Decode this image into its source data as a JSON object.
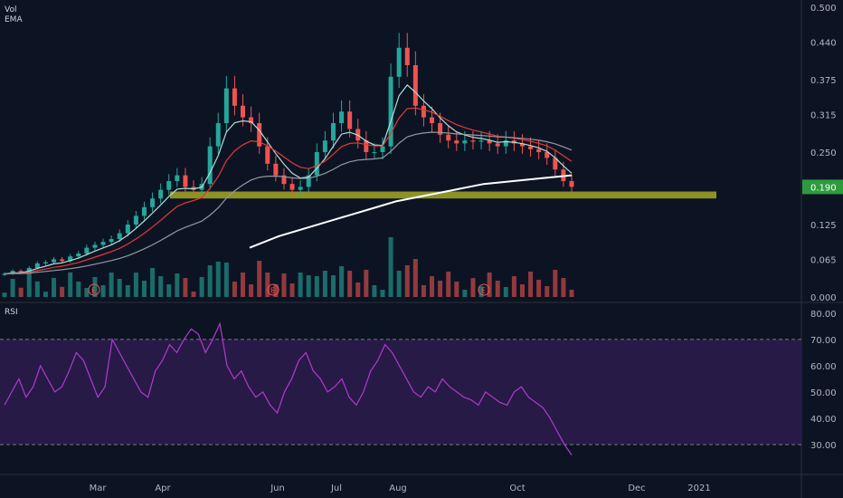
{
  "labels": {
    "vol": "Vol",
    "ema": "EMA",
    "rsi": "RSI"
  },
  "colors": {
    "background": "#0c1424",
    "bull": "#26a69a",
    "bear": "#ef5350",
    "support_zone": "#a6a826",
    "ema_white": "#ffffff",
    "ema_gray": "#9598a1",
    "ema_red": "#e53935",
    "ema_green": "#b2dfdb",
    "rsi_line": "#b03ad2",
    "rsi_band": "#2a1b4a",
    "last_price_bg": "#2e9b3e"
  },
  "chart_data": [
    {
      "type": "candlestick",
      "title": "",
      "price_axis_ticks": [
        "0.500",
        "0.440",
        "0.375",
        "0.315",
        "0.250",
        "0.190",
        "0.125",
        "0.065",
        "0.000"
      ],
      "time_axis_labels": [
        "Mar",
        "Apr",
        "Jun",
        "Jul",
        "Aug",
        "Oct",
        "Dec",
        "2021"
      ],
      "last_price": "0.190",
      "support_zone": [
        0.17,
        0.182
      ],
      "earnings_markers": [
        "E",
        "E",
        "E"
      ],
      "close_series": [
        0.04,
        0.045,
        0.042,
        0.05,
        0.058,
        0.06,
        0.065,
        0.062,
        0.07,
        0.075,
        0.085,
        0.09,
        0.095,
        0.1,
        0.11,
        0.125,
        0.14,
        0.155,
        0.17,
        0.185,
        0.2,
        0.21,
        0.19,
        0.185,
        0.195,
        0.26,
        0.3,
        0.36,
        0.33,
        0.31,
        0.3,
        0.26,
        0.23,
        0.21,
        0.195,
        0.185,
        0.19,
        0.21,
        0.25,
        0.27,
        0.3,
        0.32,
        0.29,
        0.27,
        0.25,
        0.25,
        0.26,
        0.38,
        0.43,
        0.4,
        0.33,
        0.31,
        0.3,
        0.28,
        0.27,
        0.265,
        0.27,
        0.268,
        0.27,
        0.265,
        0.26,
        0.27,
        0.265,
        0.26,
        0.255,
        0.25,
        0.24,
        0.22,
        0.2,
        0.19
      ],
      "ema_white": [
        0.085,
        0.105,
        0.12,
        0.135,
        0.15,
        0.165,
        0.175,
        0.185,
        0.195,
        0.2,
        0.205,
        0.21
      ],
      "rsi_axis_ticks": [
        "80.00",
        "70.00",
        "60.00",
        "50.00",
        "40.00",
        "30.00"
      ],
      "rsi_band": [
        30,
        70
      ],
      "rsi_values": [
        45,
        50,
        55,
        48,
        52,
        60,
        55,
        50,
        52,
        58,
        65,
        62,
        55,
        48,
        52,
        70,
        65,
        60,
        55,
        50,
        48,
        58,
        62,
        68,
        65,
        70,
        74,
        72,
        65,
        70,
        76,
        60,
        55,
        58,
        52,
        48,
        50,
        45,
        42,
        50,
        55,
        62,
        65,
        58,
        55,
        50,
        52,
        55,
        48,
        45,
        50,
        58,
        62,
        68,
        65,
        60,
        55,
        50,
        48,
        52,
        50,
        55,
        52,
        50,
        48,
        47,
        45,
        50,
        48,
        46,
        45,
        50,
        52,
        48,
        46,
        44,
        40,
        35,
        30,
        26
      ]
    }
  ]
}
